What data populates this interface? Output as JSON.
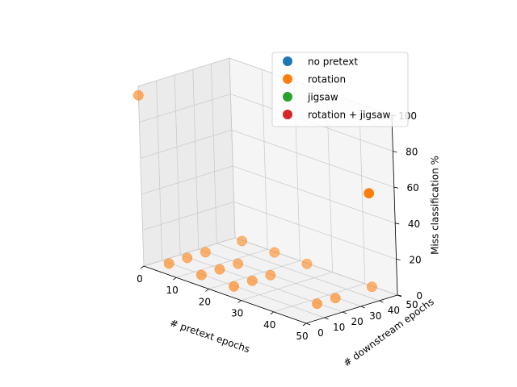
{
  "chart_data": {
    "type": "scatter",
    "projection": "3d",
    "xlabel": "# pretext epochs",
    "ylabel": "# downstream epochs",
    "zlabel": "Miss classification %",
    "xticks": [
      0,
      10,
      20,
      30,
      40,
      50
    ],
    "yticks": [
      0,
      10,
      20,
      30,
      40,
      50
    ],
    "zticks": [
      0,
      20,
      40,
      60,
      80,
      100
    ],
    "xlim": [
      0,
      50
    ],
    "ylim": [
      0,
      50
    ],
    "zlim": [
      0,
      100
    ],
    "grid": true,
    "legend": {
      "position": "top-right",
      "entries": [
        {
          "name": "no pretext",
          "color": "#1f77b4"
        },
        {
          "name": "rotation",
          "color": "#ff7f0e"
        },
        {
          "name": "jigsaw",
          "color": "#2ca02c"
        },
        {
          "name": "rotation + jigsaw",
          "color": "#d62728"
        }
      ]
    },
    "series": [
      {
        "name": "rotation",
        "color": "#ff7f0e",
        "points": [
          {
            "x": 5,
            "y": 5,
            "z": 3
          },
          {
            "x": 15,
            "y": 5,
            "z": 3
          },
          {
            "x": 25,
            "y": 5,
            "z": 3
          },
          {
            "x": 5,
            "y": 15,
            "z": 3
          },
          {
            "x": 15,
            "y": 15,
            "z": 3
          },
          {
            "x": 25,
            "y": 15,
            "z": 3
          },
          {
            "x": 5,
            "y": 25,
            "z": 3
          },
          {
            "x": 15,
            "y": 25,
            "z": 3
          },
          {
            "x": 25,
            "y": 25,
            "z": 3
          },
          {
            "x": 45,
            "y": 15,
            "z": 3
          },
          {
            "x": 45,
            "y": 25,
            "z": 3
          },
          {
            "x": 45,
            "y": 45,
            "z": 3
          },
          {
            "x": 5,
            "y": 45,
            "z": 3
          },
          {
            "x": 15,
            "y": 45,
            "z": 3
          },
          {
            "x": 25,
            "y": 45,
            "z": 3
          },
          {
            "x": 0,
            "y": 0,
            "z": 95
          },
          {
            "x": 45,
            "y": 45,
            "z": 55
          }
        ]
      }
    ]
  }
}
